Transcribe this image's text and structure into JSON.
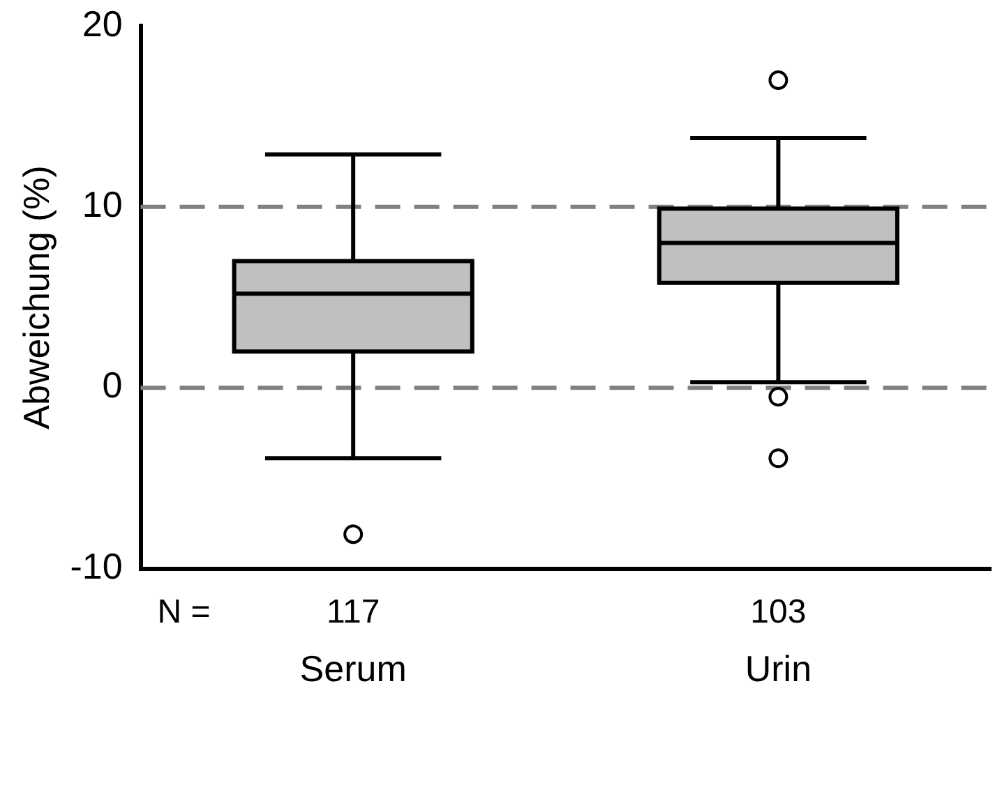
{
  "chart_data": {
    "type": "box",
    "ylabel": "Abweichung (%)",
    "categories": [
      "Serum",
      "Urin"
    ],
    "color": "#c0c0c0",
    "boxes": [
      {
        "low": -3.9,
        "q1": 2.0,
        "median": 5.2,
        "q3": 7.0,
        "high": 12.9,
        "outliers": [
          -8.1
        ]
      },
      {
        "low": 0.3,
        "q1": 5.8,
        "median": 8.0,
        "q3": 9.9,
        "high": 13.8,
        "outliers": [
          17.0,
          -0.5,
          -3.9
        ]
      }
    ],
    "ylim": [
      -10,
      20
    ],
    "yticks": [
      -10,
      0,
      10,
      20
    ],
    "grid": false,
    "legend": false,
    "ref_lines": [
      {
        "axis": "y",
        "value": 10,
        "color": "#808080",
        "line_style": "dashed"
      },
      {
        "axis": "y",
        "value": 0,
        "color": "#808080",
        "line_style": "dashed"
      }
    ],
    "annotations": [
      "N =",
      "117",
      "103"
    ]
  }
}
